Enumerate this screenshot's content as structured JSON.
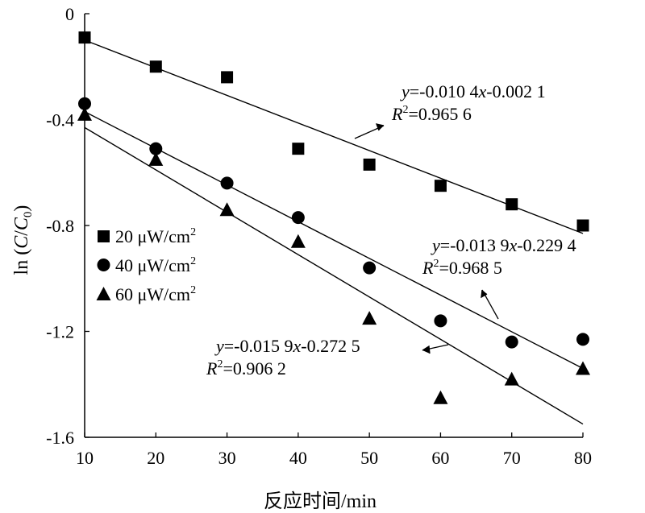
{
  "chart_data": {
    "type": "scatter",
    "xlabel": "反应时间/min",
    "ylabel": {
      "prefix": "ln (",
      "c": "C",
      "slash": "/",
      "c0": "C",
      "c0_sub": "0",
      "suffix": ")"
    },
    "xlim": [
      10,
      80
    ],
    "ylim": [
      -1.6,
      0
    ],
    "x_ticks": [
      10,
      20,
      30,
      40,
      50,
      60,
      70,
      80
    ],
    "y_ticks": [
      0,
      -0.4,
      -0.8,
      -1.2,
      -1.6
    ],
    "y_tick_labels": [
      "0",
      "-0.4",
      "-0.8",
      "-1.2",
      "-1.6"
    ],
    "grid": false,
    "legend_position": "left",
    "x": [
      10,
      20,
      30,
      40,
      50,
      60,
      70,
      80
    ],
    "series": [
      {
        "name": "20 μW/cm2",
        "legend": {
          "text": "20 μW/cm",
          "sup": "2"
        },
        "marker": "square",
        "values": [
          -0.09,
          -0.2,
          -0.24,
          -0.51,
          -0.57,
          -0.65,
          -0.72,
          -0.8
        ],
        "fit_line": [
          [
            10,
            -0.1
          ],
          [
            80,
            -0.83
          ]
        ],
        "equation": {
          "y": "y",
          "rest_a": "=-0.010 4",
          "x": "x",
          "rest_b": "-0.002 1",
          "r": "R",
          "r_sup": "2",
          "r_val": "=0.965 6"
        }
      },
      {
        "name": "40 μW/cm2",
        "legend": {
          "text": "40 μW/cm",
          "sup": "2"
        },
        "marker": "circle",
        "values": [
          -0.34,
          -0.51,
          -0.64,
          -0.77,
          -0.96,
          -1.16,
          -1.24,
          -1.23
        ],
        "fit_line": [
          [
            10,
            -0.37
          ],
          [
            80,
            -1.34
          ]
        ],
        "equation": {
          "y": "y",
          "rest_a": "=-0.013 9",
          "x": "x",
          "rest_b": "-0.229 4",
          "r": "R",
          "r_sup": "2",
          "r_val": "=0.968 5"
        }
      },
      {
        "name": "60 μW/cm2",
        "legend": {
          "text": "60 μW/cm",
          "sup": "2"
        },
        "marker": "triangle",
        "values": [
          -0.38,
          -0.55,
          -0.74,
          -0.86,
          -1.15,
          -1.45,
          -1.38,
          -1.34
        ],
        "fit_line": [
          [
            10,
            -0.43
          ],
          [
            80,
            -1.55
          ]
        ],
        "equation": {
          "y": "y",
          "rest_a": "=-0.015 9",
          "x": "x",
          "rest_b": "-0.272 5",
          "r": "R",
          "r_sup": "2",
          "r_val": "=0.906 2"
        }
      }
    ]
  }
}
